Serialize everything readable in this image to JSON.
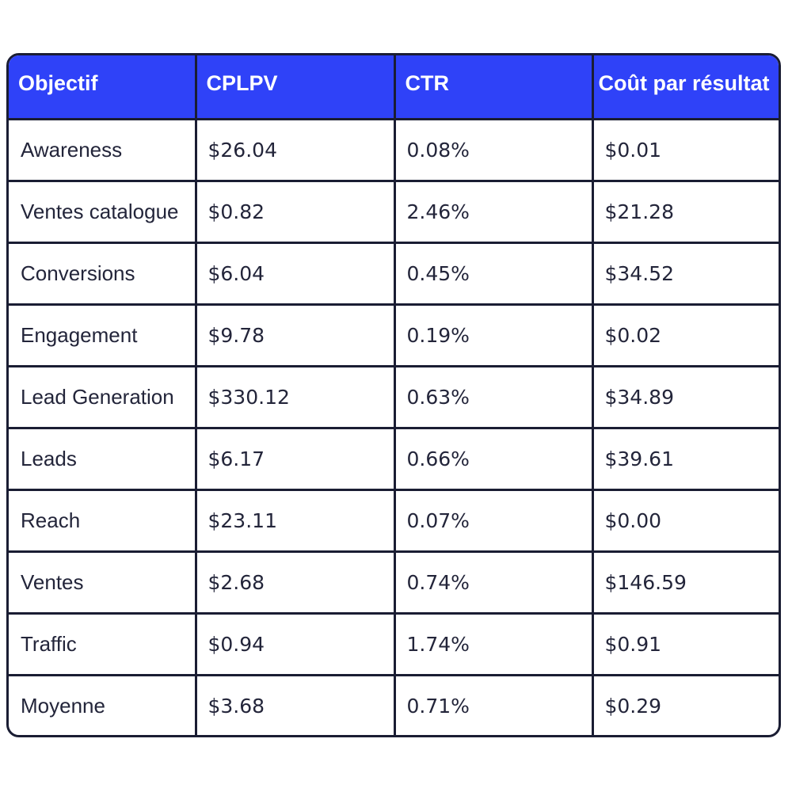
{
  "table": {
    "headers": [
      "Objectif",
      "CPLPV",
      "CTR",
      "Coût par résultat"
    ],
    "rows": [
      [
        "Awareness",
        "$26.04",
        "0.08%",
        "$0.01"
      ],
      [
        "Ventes catalogue",
        "$0.82",
        "2.46%",
        "$21.28"
      ],
      [
        "Conversions",
        "$6.04",
        "0.45%",
        "$34.52"
      ],
      [
        "Engagement",
        "$9.78",
        "0.19%",
        "$0.02"
      ],
      [
        "Lead Generation",
        "$330.12",
        "0.63%",
        "$34.89"
      ],
      [
        "Leads",
        "$6.17",
        "0.66%",
        "$39.61"
      ],
      [
        "Reach",
        "$23.11",
        "0.07%",
        "$0.00"
      ],
      [
        "Ventes",
        "$2.68",
        "0.74%",
        "$146.59"
      ],
      [
        "Traffic",
        "$0.94",
        "1.74%",
        "$0.91"
      ],
      [
        "Moyenne",
        "$3.68",
        "0.71%",
        "$0.29"
      ]
    ]
  },
  "colors": {
    "header_background": "#2f42f8",
    "header_text": "#ffffff",
    "border": "#1a1d33",
    "body_text": "#23253a"
  }
}
